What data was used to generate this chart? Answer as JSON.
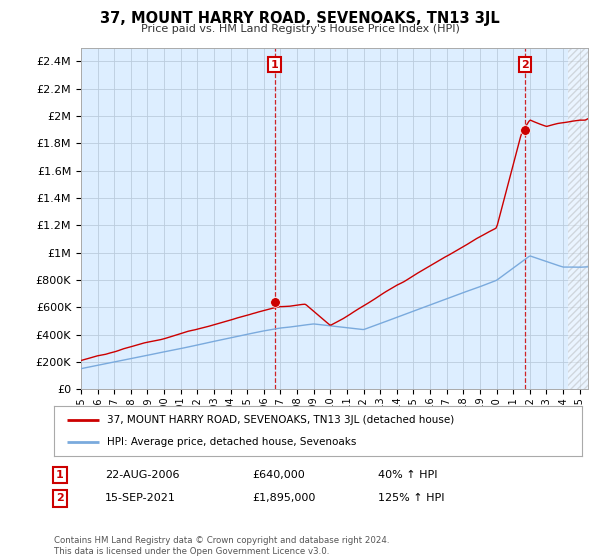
{
  "title": "37, MOUNT HARRY ROAD, SEVENOAKS, TN13 3JL",
  "subtitle": "Price paid vs. HM Land Registry's House Price Index (HPI)",
  "ylabel_ticks": [
    "£0",
    "£200K",
    "£400K",
    "£600K",
    "£800K",
    "£1M",
    "£1.2M",
    "£1.4M",
    "£1.6M",
    "£1.8M",
    "£2M",
    "£2.2M",
    "£2.4M"
  ],
  "ytick_values": [
    0,
    200000,
    400000,
    600000,
    800000,
    1000000,
    1200000,
    1400000,
    1600000,
    1800000,
    2000000,
    2200000,
    2400000
  ],
  "ylim": [
    0,
    2500000
  ],
  "xlim_start": 1995.0,
  "xlim_end": 2025.5,
  "sale1_x": 2006.645,
  "sale1_y": 640000,
  "sale2_x": 2021.708,
  "sale2_y": 1895000,
  "marker_color": "#cc0000",
  "hpi_color": "#7aaadd",
  "price_color": "#cc0000",
  "chart_bg_color": "#ddeeff",
  "legend_label_price": "37, MOUNT HARRY ROAD, SEVENOAKS, TN13 3JL (detached house)",
  "legend_label_hpi": "HPI: Average price, detached house, Sevenoaks",
  "note1_label": "1",
  "note1_date": "22-AUG-2006",
  "note1_price": "£640,000",
  "note1_pct": "40% ↑ HPI",
  "note2_label": "2",
  "note2_date": "15-SEP-2021",
  "note2_price": "£1,895,000",
  "note2_pct": "125% ↑ HPI",
  "footer": "Contains HM Land Registry data © Crown copyright and database right 2024.\nThis data is licensed under the Open Government Licence v3.0.",
  "background_color": "#ffffff",
  "grid_color": "#bbccdd"
}
